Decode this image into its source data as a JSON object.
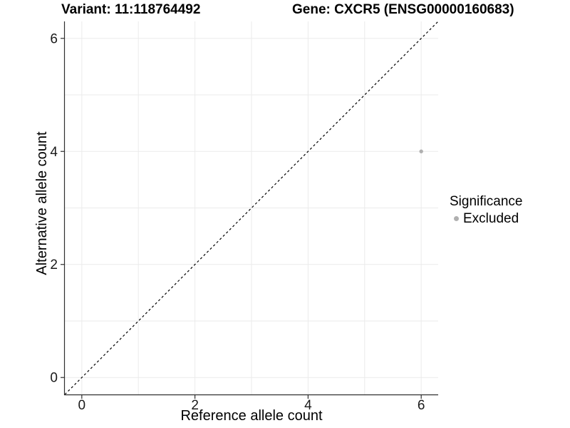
{
  "chart_data": {
    "type": "scatter",
    "titles": {
      "variant": "Variant: 11:118764492",
      "gene": "Gene: CXCR5 (ENSG00000160683)"
    },
    "xlabel": "Reference allele count",
    "ylabel": "Alternative allele count",
    "xlim": [
      -0.3,
      6.3
    ],
    "ylim": [
      -0.3,
      6.3
    ],
    "x_ticks": [
      0,
      2,
      4,
      6
    ],
    "y_ticks": [
      0,
      2,
      4,
      6
    ],
    "grid_values": [
      0,
      1,
      2,
      3,
      4,
      5,
      6
    ],
    "grid": true,
    "reference_line": {
      "type": "identity",
      "style": "dashed",
      "from": [
        -0.3,
        -0.3
      ],
      "to": [
        6.3,
        6.3
      ],
      "color": "#000000"
    },
    "series": [
      {
        "name": "Excluded",
        "color": "#b0b0b0",
        "points": [
          {
            "x": 6,
            "y": 4
          }
        ]
      }
    ],
    "legend": {
      "title": "Significance",
      "position": "right",
      "entries": [
        {
          "label": "Excluded",
          "marker": "circle",
          "color": "#b0b0b0"
        }
      ]
    }
  },
  "style": {
    "background": "#ffffff",
    "grid_color": "#ebebeb",
    "axis_color": "#2f2f2f",
    "tick_text_color": "#1a1a1a",
    "point_radius": 2.7,
    "tick_length": 5
  }
}
